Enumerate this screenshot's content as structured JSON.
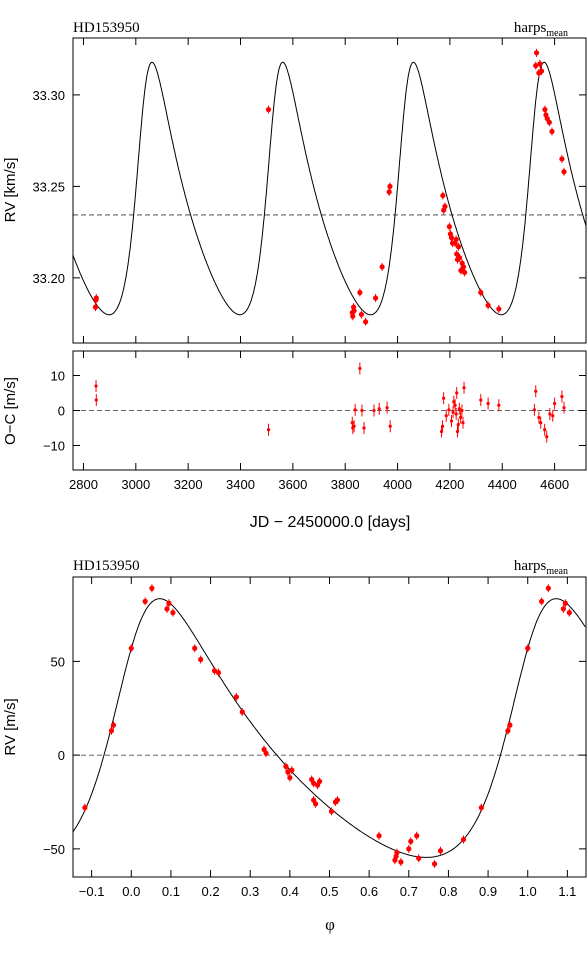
{
  "chart_data": [
    {
      "type": "scatter",
      "title": "HD153950",
      "instrument": "harps",
      "instrument_sub": "mean",
      "xlabel": "",
      "ylabel": "RV [km/s]",
      "xlim": [
        2760,
        4720
      ],
      "ylim": [
        33.1644,
        33.3311
      ],
      "xticks": [
        2800,
        3000,
        3200,
        3400,
        3600,
        3800,
        4000,
        4200,
        4400,
        4600
      ],
      "yticks": [
        33.2,
        33.25,
        33.3
      ],
      "ytick_labels": [
        "33.20",
        "33.25",
        "33.30"
      ],
      "reference_line": 33.2344,
      "model": {
        "period": 499.4,
        "K": 0.069,
        "e": 0.34,
        "omega_deg": 308,
        "t_peri": 3026,
        "v0": 33.2344
      },
      "series": [
        {
          "color": "#ff0000",
          "points": [
            [
              2846,
              33.184
            ],
            [
              2848,
              33.188
            ],
            [
              2849,
              33.189
            ],
            [
              3507,
              33.292
            ],
            [
              3827,
              33.181
            ],
            [
              3829,
              33.179
            ],
            [
              3832,
              33.184
            ],
            [
              3834,
              33.182
            ],
            [
              3856,
              33.192
            ],
            [
              3862,
              33.18
            ],
            [
              3878,
              33.176
            ],
            [
              3916,
              33.189
            ],
            [
              3941,
              33.206
            ],
            [
              3968,
              33.247
            ],
            [
              3971,
              33.25
            ],
            [
              4173,
              33.245
            ],
            [
              4176,
              33.237
            ],
            [
              4181,
              33.239
            ],
            [
              4198,
              33.228
            ],
            [
              4202,
              33.224
            ],
            [
              4206,
              33.222
            ],
            [
              4210,
              33.219
            ],
            [
              4220,
              33.219
            ],
            [
              4224,
              33.221
            ],
            [
              4226,
              33.213
            ],
            [
              4229,
              33.21
            ],
            [
              4233,
              33.217
            ],
            [
              4237,
              33.211
            ],
            [
              4242,
              33.204
            ],
            [
              4247,
              33.208
            ],
            [
              4252,
              33.206
            ],
            [
              4256,
              33.203
            ],
            [
              4318,
              33.192
            ],
            [
              4346,
              33.185
            ],
            [
              4387,
              33.183
            ],
            [
              4528,
              33.316
            ],
            [
              4531,
              33.323
            ],
            [
              4540,
              33.312
            ],
            [
              4544,
              33.317
            ],
            [
              4550,
              33.313
            ],
            [
              4563,
              33.292
            ],
            [
              4567,
              33.289
            ],
            [
              4572,
              33.287
            ],
            [
              4580,
              33.285
            ],
            [
              4590,
              33.28
            ],
            [
              4628,
              33.265
            ],
            [
              4636,
              33.258
            ]
          ]
        }
      ]
    },
    {
      "type": "scatter",
      "title": "",
      "xlabel": "JD − 2450000.0 [days]",
      "ylabel": "O−C [m/s]",
      "xlim": [
        2760,
        4720
      ],
      "ylim": [
        -17,
        17
      ],
      "xticks": [
        2800,
        3000,
        3200,
        3400,
        3600,
        3800,
        4000,
        4200,
        4400,
        4600
      ],
      "yticks": [
        -10,
        0,
        10
      ],
      "reference_line": 0,
      "series": [
        {
          "color": "#ff0000",
          "points": [
            [
              2848,
              7.0
            ],
            [
              2849,
              3.0
            ],
            [
              3507,
              -5.5
            ],
            [
              3827,
              -3.5
            ],
            [
              3829,
              -5.0
            ],
            [
              3834,
              -4.5
            ],
            [
              3838,
              0.2
            ],
            [
              3856,
              12.0
            ],
            [
              3864,
              0.0
            ],
            [
              3872,
              -5.0
            ],
            [
              3910,
              0.0
            ],
            [
              3930,
              0.5
            ],
            [
              3960,
              0.8
            ],
            [
              3972,
              -4.5
            ],
            [
              4168,
              -6.0
            ],
            [
              4172,
              -4.5
            ],
            [
              4176,
              3.5
            ],
            [
              4186,
              -1.5
            ],
            [
              4196,
              0.2
            ],
            [
              4206,
              -3.0
            ],
            [
              4212,
              -0.5
            ],
            [
              4215,
              2.5
            ],
            [
              4220,
              1.5
            ],
            [
              4224,
              -1.0
            ],
            [
              4226,
              5.0
            ],
            [
              4229,
              -6.0
            ],
            [
              4232,
              -4.0
            ],
            [
              4236,
              0.5
            ],
            [
              4241,
              -2.0
            ],
            [
              4246,
              0.0
            ],
            [
              4250,
              -3.5
            ],
            [
              4254,
              6.5
            ],
            [
              4318,
              3.0
            ],
            [
              4346,
              2.0
            ],
            [
              4387,
              1.5
            ],
            [
              4523,
              0.2
            ],
            [
              4528,
              5.5
            ],
            [
              4540,
              -2.0
            ],
            [
              4547,
              -3.5
            ],
            [
              4562,
              -5.5
            ],
            [
              4570,
              -7.5
            ],
            [
              4582,
              -1.0
            ],
            [
              4593,
              -1.5
            ],
            [
              4600,
              2.0
            ],
            [
              4628,
              4.0
            ],
            [
              4636,
              0.8
            ]
          ]
        }
      ]
    },
    {
      "type": "scatter",
      "title": "HD153950",
      "instrument": "harps",
      "instrument_sub": "mean",
      "xlabel": "φ",
      "ylabel": "RV [m/s]",
      "xlim": [
        -0.147,
        1.147
      ],
      "ylim": [
        -65,
        95
      ],
      "xticks": [
        -0.1,
        0.0,
        0.1,
        0.2,
        0.3,
        0.4,
        0.5,
        0.6,
        0.7,
        0.8,
        0.9,
        1.0,
        1.1
      ],
      "xtick_labels": [
        "−0.1",
        "0.0",
        "0.1",
        "0.2",
        "0.3",
        "0.4",
        "0.5",
        "0.6",
        "0.7",
        "0.8",
        "0.9",
        "1.0",
        "1.1"
      ],
      "yticks": [
        -50,
        0,
        50
      ],
      "ytick_labels": [
        "−50",
        "0",
        "50"
      ],
      "reference_line": 0,
      "model": {
        "K": 69.0,
        "e": 0.34,
        "omega_deg": 308,
        "phase_peri": 0
      },
      "series": [
        {
          "color": "#ff0000",
          "points": [
            [
              -0.117,
              -28
            ],
            [
              -0.05,
              13
            ],
            [
              -0.045,
              16
            ],
            [
              0.0,
              57
            ],
            [
              0.035,
              82
            ],
            [
              0.052,
              89
            ],
            [
              0.09,
              78
            ],
            [
              0.095,
              81
            ],
            [
              0.105,
              76
            ],
            [
              0.16,
              57
            ],
            [
              0.175,
              51
            ],
            [
              0.21,
              45
            ],
            [
              0.22,
              44
            ],
            [
              0.265,
              31
            ],
            [
              0.28,
              23
            ],
            [
              0.335,
              3
            ],
            [
              0.34,
              1
            ],
            [
              0.39,
              -6
            ],
            [
              0.395,
              -9
            ],
            [
              0.4,
              -12
            ],
            [
              0.405,
              -8
            ],
            [
              0.455,
              -13
            ],
            [
              0.46,
              -15
            ],
            [
              0.46,
              -24
            ],
            [
              0.465,
              -26
            ],
            [
              0.47,
              -16
            ],
            [
              0.475,
              -14
            ],
            [
              0.505,
              -30
            ],
            [
              0.515,
              -25
            ],
            [
              0.52,
              -24
            ],
            [
              0.625,
              -43
            ],
            [
              0.665,
              -56
            ],
            [
              0.668,
              -54
            ],
            [
              0.67,
              -52
            ],
            [
              0.68,
              -57
            ],
            [
              0.7,
              -50
            ],
            [
              0.705,
              -46
            ],
            [
              0.72,
              -43
            ],
            [
              0.725,
              -55
            ],
            [
              0.765,
              -58
            ],
            [
              0.78,
              -51
            ],
            [
              0.838,
              -45
            ],
            [
              0.883,
              -28
            ],
            [
              0.95,
              13
            ],
            [
              0.955,
              16
            ],
            [
              1.0,
              57
            ],
            [
              1.035,
              82
            ],
            [
              1.052,
              89
            ],
            [
              1.09,
              78
            ],
            [
              1.095,
              81
            ],
            [
              1.105,
              76
            ]
          ]
        }
      ]
    }
  ]
}
